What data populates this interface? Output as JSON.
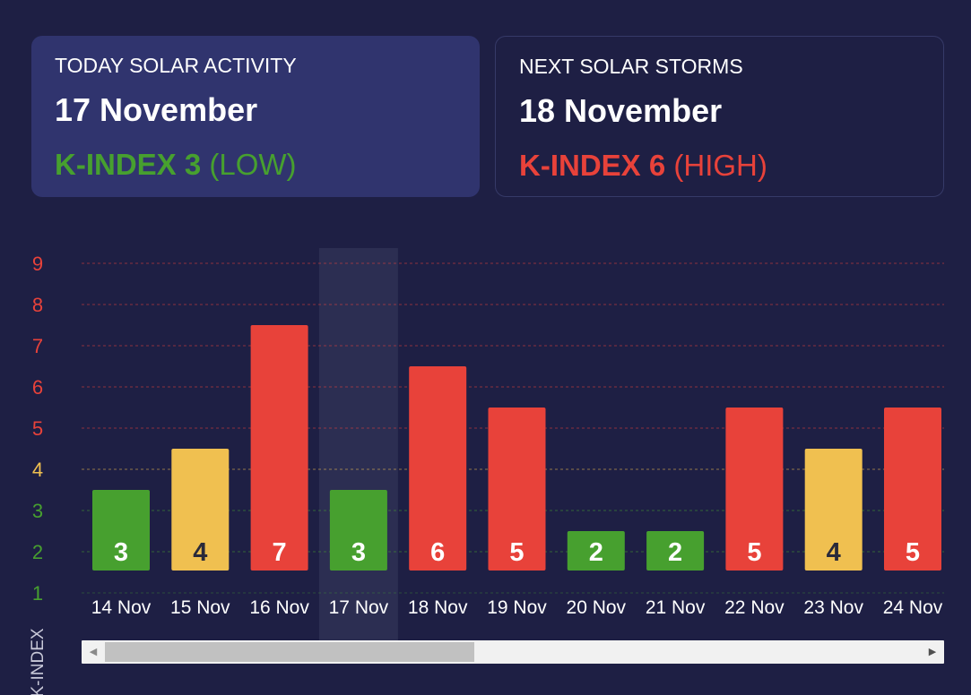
{
  "today": {
    "label": "TODAY SOLAR ACTIVITY",
    "date": "17 November",
    "k_text": "K-INDEX 3",
    "level": "(LOW)",
    "color": "#47a02f"
  },
  "next": {
    "label": "NEXT SOLAR STORMS",
    "date": "18 November",
    "k_text": "K-INDEX 6",
    "level": "(HIGH)",
    "color": "#e8423a"
  },
  "colors": {
    "background": "#1e1f44",
    "card_active": "#30346e",
    "low": "#47a02f",
    "medium": "#f0c050",
    "high": "#e8423a"
  },
  "chart_data": {
    "type": "bar",
    "ylabel": "K-INDEX",
    "ylim": [
      1,
      9
    ],
    "yticks": [
      "1",
      "2",
      "3",
      "4",
      "5",
      "6",
      "7",
      "8",
      "9"
    ],
    "categories": [
      "14 Nov",
      "15 Nov",
      "16 Nov",
      "17 Nov",
      "18 Nov",
      "19 Nov",
      "20 Nov",
      "21 Nov",
      "22 Nov",
      "23 Nov",
      "24 Nov"
    ],
    "values": [
      3,
      4,
      7,
      3,
      6,
      5,
      2,
      2,
      5,
      4,
      5
    ],
    "highlighted": "17 Nov",
    "grid": true,
    "value_labels": true
  },
  "scrollbar": {
    "left_icon": "scroll-left-arrow-icon",
    "right_icon": "scroll-right-arrow-icon"
  }
}
